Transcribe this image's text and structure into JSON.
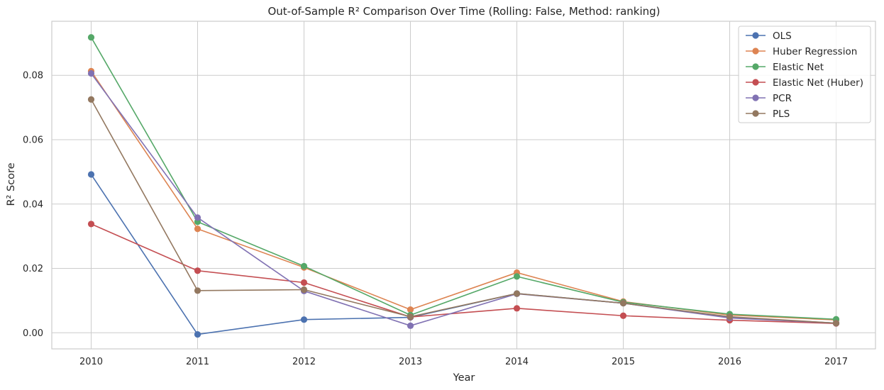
{
  "chart_data": {
    "type": "line",
    "title": "Out-of-Sample R² Comparison Over Time (Rolling: False, Method: ranking)",
    "xlabel": "Year",
    "ylabel": "R² Score",
    "x": [
      2010,
      2011,
      2012,
      2013,
      2014,
      2015,
      2016,
      2017
    ],
    "x_tick_labels": [
      "2010",
      "2011",
      "2012",
      "2013",
      "2014",
      "2015",
      "2016",
      "2017"
    ],
    "y_ticks": [
      0.0,
      0.02,
      0.04,
      0.06,
      0.08
    ],
    "y_tick_labels": [
      "0.00",
      "0.02",
      "0.04",
      "0.06",
      "0.08"
    ],
    "xlim": [
      2009.63,
      2017.37
    ],
    "ylim": [
      -0.005,
      0.0968
    ],
    "grid": true,
    "legend_position": "top-right",
    "series": [
      {
        "name": "OLS",
        "color": "#4c72b0",
        "values": [
          0.0492,
          -0.0005,
          0.0041,
          0.0048,
          0.0122,
          0.0092,
          0.0048,
          0.003
        ]
      },
      {
        "name": "Huber Regression",
        "color": "#dd8452",
        "values": [
          0.0813,
          0.0323,
          0.0203,
          0.0072,
          0.0187,
          0.0097,
          0.0055,
          0.004
        ]
      },
      {
        "name": "Elastic Net",
        "color": "#55a868",
        "values": [
          0.0918,
          0.0345,
          0.0207,
          0.0055,
          0.0175,
          0.0095,
          0.0058,
          0.0042
        ]
      },
      {
        "name": "Elastic Net (Huber)",
        "color": "#c44e52",
        "values": [
          0.0338,
          0.0193,
          0.0156,
          0.0049,
          0.0076,
          0.0053,
          0.0039,
          0.0029
        ]
      },
      {
        "name": "PCR",
        "color": "#8172b3",
        "values": [
          0.0806,
          0.0358,
          0.013,
          0.0022,
          0.0121,
          0.0092,
          0.0046,
          0.003
        ]
      },
      {
        "name": "PLS",
        "color": "#937860",
        "values": [
          0.0725,
          0.0131,
          0.0134,
          0.005,
          0.0122,
          0.0092,
          0.005,
          0.003
        ]
      }
    ]
  }
}
